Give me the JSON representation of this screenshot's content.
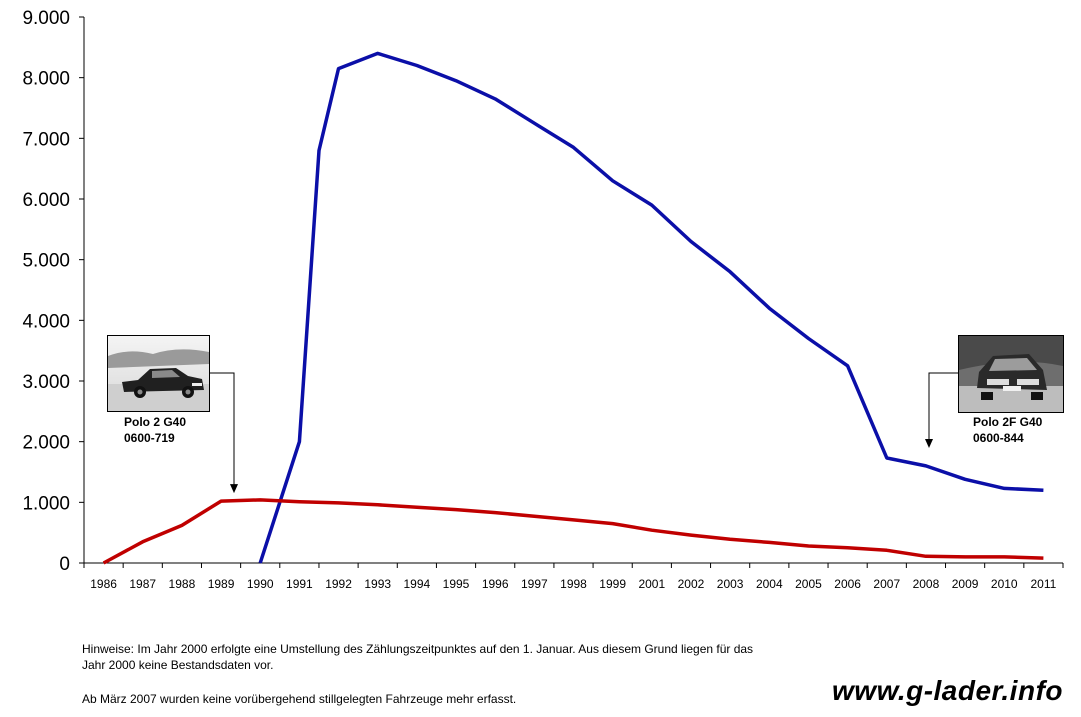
{
  "chart_data": {
    "type": "line",
    "categories": [
      "1986",
      "1987",
      "1988",
      "1989",
      "1990",
      "1991",
      "1992",
      "1993",
      "1994",
      "1995",
      "1996",
      "1997",
      "1998",
      "1999",
      "2001",
      "2002",
      "2003",
      "2004",
      "2005",
      "2006",
      "2007",
      "2008",
      "2009",
      "2010",
      "2011"
    ],
    "series": [
      {
        "color": "#0b0fa8",
        "x": [
          1990.0,
          1991.0,
          1991.5,
          1992.0,
          1993.0,
          1994.0,
          1995.0,
          1996.0,
          1997.0,
          1998.0,
          1999.0,
          2001.0,
          2002.0,
          2003.0,
          2004.0,
          2005.0,
          2006.0,
          2007.0,
          2008.0,
          2009.0,
          2010.0,
          2011.0
        ],
        "values": [
          0,
          2000,
          6800,
          8150,
          8400,
          8200,
          7950,
          7650,
          7250,
          6850,
          6300,
          5900,
          5300,
          4800,
          4200,
          3700,
          3250,
          1730,
          1600,
          1380,
          1230,
          1200
        ],
        "note": ""
      },
      {
        "color": "#c00000",
        "x": [
          1986.0,
          1987.0,
          1988.0,
          1989.0,
          1990.0,
          1991.0,
          1992.0,
          1993.0,
          1994.0,
          1995.0,
          1996.0,
          1997.0,
          1998.0,
          1999.0,
          2001.0,
          2002.0,
          2003.0,
          2004.0,
          2005.0,
          2006.0,
          2007.0,
          2008.0,
          2009.0,
          2010.0,
          2011.0
        ],
        "values": [
          0,
          350,
          620,
          1020,
          1040,
          1010,
          990,
          960,
          920,
          880,
          830,
          770,
          710,
          650,
          540,
          460,
          390,
          340,
          280,
          250,
          210,
          110,
          100,
          100,
          80
        ]
      }
    ],
    "y_ticks": [
      "0",
      "1.000",
      "2.000",
      "3.000",
      "4.000",
      "5.000",
      "6.000",
      "7.000",
      "8.000",
      "9.000"
    ],
    "ylim": [
      0,
      9000
    ],
    "grid": false,
    "title": "",
    "xlabel": "",
    "ylabel": ""
  },
  "callouts": {
    "left": {
      "title": "Polo 2 G40",
      "code": "0600-719",
      "year": 1989.3,
      "value": 1020
    },
    "right": {
      "title": "Polo 2F G40",
      "code": "0600-844",
      "year": 2008.0,
      "value": 1730
    }
  },
  "notes": {
    "line1": "Hinweise: Im Jahr 2000 erfolgte eine Umstellung des Zählungszeitpunktes auf den 1. Januar. Aus diesem Grund liegen für das",
    "line2": "Jahr 2000 keine Bestandsdaten vor.",
    "line3": "Ab März 2007 wurden keine vorübergehend stillgelegten Fahrzeuge mehr erfasst."
  },
  "watermark": "www.g-lader.info"
}
